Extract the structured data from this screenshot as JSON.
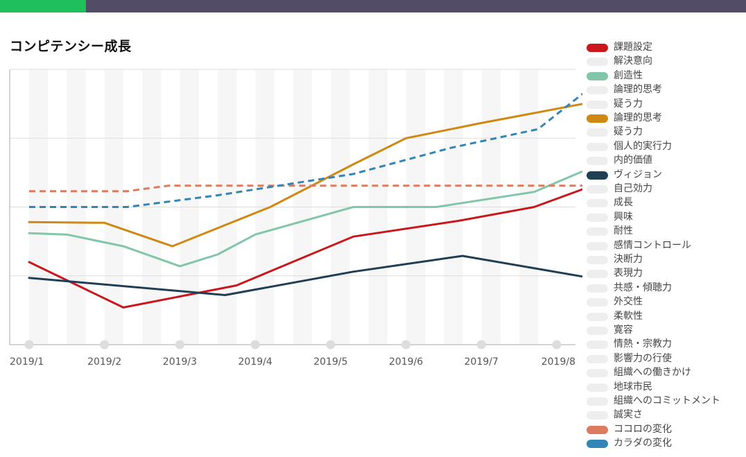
{
  "header": {
    "progress": 0.115,
    "progress_color": "#1fc05c",
    "bar_color": "#524c66"
  },
  "chart_data": {
    "type": "line",
    "title": "コンピテンシー成長",
    "categories": [
      "2019/1",
      "2019/2",
      "2019/3",
      "2019/4",
      "2019/5",
      "2019/6",
      "2019/7",
      "2019/8"
    ],
    "xlabel": "",
    "ylabel": "",
    "ylim": [
      0,
      4
    ],
    "grid": true,
    "legend_position": "right",
    "series": [
      {
        "name": "課題設定",
        "color": "#c9171c",
        "dashed": false,
        "visible": true,
        "x": [
          1,
          2.25,
          3.75,
          5.3,
          6.7,
          7.7,
          8.5
        ],
        "values": [
          1.2,
          0.54,
          0.86,
          1.57,
          1.8,
          2.0,
          2.32
        ]
      },
      {
        "name": "解決意向",
        "color": "#eeeeee",
        "visible": false
      },
      {
        "name": "創造性",
        "color": "#82c6a9",
        "dashed": false,
        "visible": true,
        "x": [
          1,
          1.5,
          2.25,
          3.0,
          3.5,
          4.0,
          5.3,
          6.4,
          7.7,
          8.5
        ],
        "values": [
          1.62,
          1.6,
          1.43,
          1.14,
          1.31,
          1.6,
          2.0,
          2.0,
          2.22,
          2.59
        ]
      },
      {
        "name": "論理的思考",
        "color": "#eeeeee",
        "visible": false
      },
      {
        "name": "疑う力",
        "color": "#eeeeee",
        "visible": false
      },
      {
        "name": "論理的思考",
        "color": "#cf8811",
        "dashed": false,
        "visible": true,
        "x": [
          1,
          2.0,
          2.9,
          4.2,
          5.3,
          6.0,
          7.0,
          8.5
        ],
        "values": [
          1.78,
          1.77,
          1.43,
          2.0,
          2.62,
          3.0,
          3.22,
          3.53
        ]
      },
      {
        "name": "疑う力",
        "color": "#eeeeee",
        "visible": false
      },
      {
        "name": "個人的実行力",
        "color": "#eeeeee",
        "visible": false
      },
      {
        "name": "内的価値",
        "color": "#eeeeee",
        "visible": false
      },
      {
        "name": "ヴィジョン",
        "color": "#203e54",
        "dashed": false,
        "visible": true,
        "x": [
          1,
          3.6,
          5.3,
          6.75,
          8.5
        ],
        "values": [
          0.97,
          0.72,
          1.06,
          1.29,
          0.96
        ]
      },
      {
        "name": "自己効力",
        "color": "#eeeeee",
        "visible": false
      },
      {
        "name": "成長",
        "color": "#eeeeee",
        "visible": false
      },
      {
        "name": "興味",
        "color": "#eeeeee",
        "visible": false
      },
      {
        "name": "耐性",
        "color": "#eeeeee",
        "visible": false
      },
      {
        "name": "感情コントロール",
        "color": "#eeeeee",
        "visible": false
      },
      {
        "name": "決断力",
        "color": "#eeeeee",
        "visible": false
      },
      {
        "name": "表現力",
        "color": "#eeeeee",
        "visible": false
      },
      {
        "name": "共感・傾聴力",
        "color": "#eeeeee",
        "visible": false
      },
      {
        "name": "外交性",
        "color": "#eeeeee",
        "visible": false
      },
      {
        "name": "柔軟性",
        "color": "#eeeeee",
        "visible": false
      },
      {
        "name": "寛容",
        "color": "#eeeeee",
        "visible": false
      },
      {
        "name": "情熱・宗教力",
        "color": "#eeeeee",
        "visible": false
      },
      {
        "name": "影響力の行使",
        "color": "#eeeeee",
        "visible": false
      },
      {
        "name": "組織への働きかけ",
        "color": "#eeeeee",
        "visible": false
      },
      {
        "name": "地球市民",
        "color": "#eeeeee",
        "visible": false
      },
      {
        "name": "組織へのコミットメント",
        "color": "#eeeeee",
        "visible": false
      },
      {
        "name": "誠実さ",
        "color": "#eeeeee",
        "visible": false
      },
      {
        "name": "ココロの変化",
        "color": "#dc7b60",
        "dashed": true,
        "visible": true,
        "x": [
          1,
          2.3,
          2.85,
          8.5
        ],
        "values": [
          2.23,
          2.23,
          2.31,
          2.31
        ]
      },
      {
        "name": "カラダの変化",
        "color": "#3385b5",
        "dashed": true,
        "visible": true,
        "x": [
          1,
          2.3,
          3.5,
          5.3,
          6.6,
          7.75,
          8.5
        ],
        "values": [
          2.0,
          2.0,
          2.17,
          2.48,
          2.86,
          3.13,
          3.78
        ]
      }
    ]
  }
}
